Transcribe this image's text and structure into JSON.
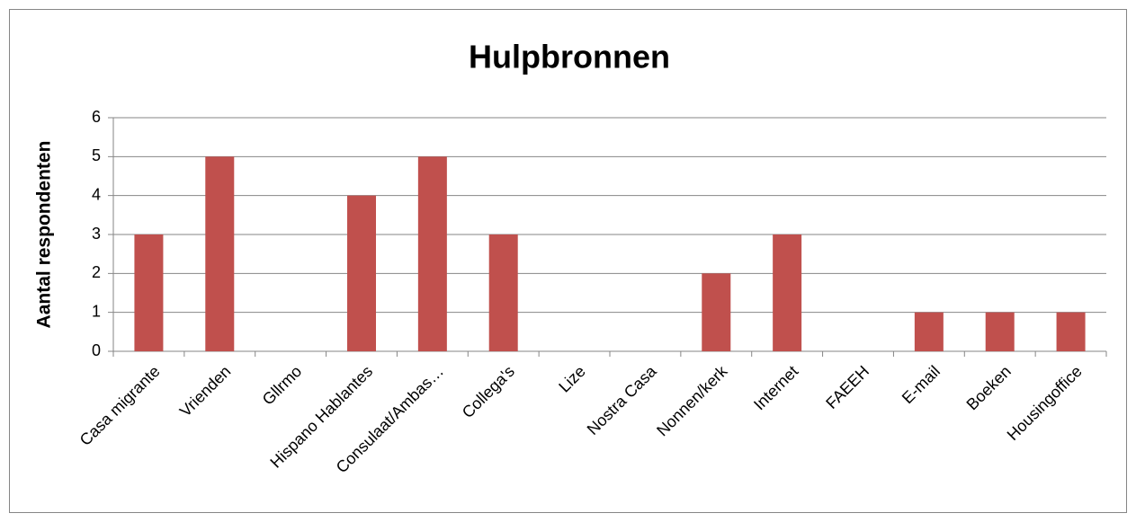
{
  "chart_data": {
    "type": "bar",
    "title": "Hulpbronnen",
    "y_label": "Aantal respondenten",
    "categories": [
      "Casa migrante",
      "Vrienden",
      "Gllrmo",
      "Hispano Hablantes",
      "Consulaat/Ambas…",
      "Collega's",
      "Lize",
      "Nostra Casa",
      "Nonnen/kerk",
      "Internet",
      "FAEEH",
      "E-mail",
      "Boeken",
      "Housingoffice"
    ],
    "values": [
      3,
      5,
      0,
      4,
      5,
      3,
      0,
      0,
      2,
      3,
      0,
      1,
      1,
      1
    ],
    "color": "#c0504d",
    "ylim": [
      0,
      6
    ],
    "yticks": [
      0,
      1,
      2,
      3,
      4,
      5,
      6
    ],
    "grid": true
  }
}
